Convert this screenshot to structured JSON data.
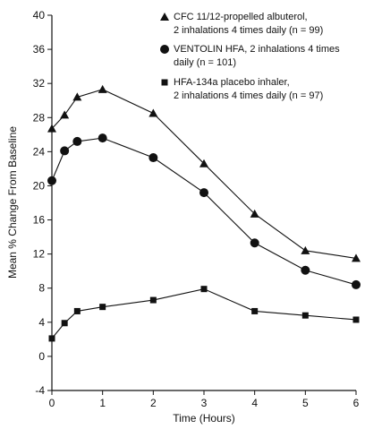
{
  "chart_data": {
    "type": "line",
    "xlabel": "Time (Hours)",
    "ylabel": "Mean % Change From Baseline",
    "xlim": [
      0,
      6
    ],
    "ylim": [
      -4,
      40
    ],
    "xticks": [
      "0",
      "1",
      "2",
      "3",
      "4",
      "5",
      "6"
    ],
    "yticks": [
      "-4",
      "0",
      "4",
      "8",
      "12",
      "16",
      "20",
      "24",
      "28",
      "32",
      "36",
      "40"
    ],
    "grid": false,
    "legend_position": "top-right",
    "series": [
      {
        "name": "CFC 11/12-propelled albuterol,",
        "name_line2": "2 inhalations 4 times daily (n = 99)",
        "marker": "triangle",
        "x": [
          0,
          0.25,
          0.5,
          1,
          2,
          3,
          4,
          5,
          6
        ],
        "y": [
          26.7,
          28.3,
          30.4,
          31.3,
          28.5,
          22.6,
          16.7,
          12.4,
          11.5
        ]
      },
      {
        "name": "VENTOLIN HFA, 2 inhalations 4 times",
        "name_line2": "daily (n = 101)",
        "marker": "circle",
        "x": [
          0,
          0.25,
          0.5,
          1,
          2,
          3,
          4,
          5,
          6
        ],
        "y": [
          20.6,
          24.1,
          25.2,
          25.6,
          23.3,
          19.2,
          13.3,
          10.1,
          8.4
        ]
      },
      {
        "name": "HFA-134a placebo inhaler,",
        "name_line2": "2 inhalations 4 times daily (n = 97)",
        "marker": "square",
        "x": [
          0,
          0.25,
          0.5,
          1,
          2,
          3,
          4,
          5,
          6
        ],
        "y": [
          2.1,
          3.9,
          5.3,
          5.8,
          6.6,
          7.9,
          5.3,
          4.8,
          4.3
        ]
      }
    ]
  }
}
